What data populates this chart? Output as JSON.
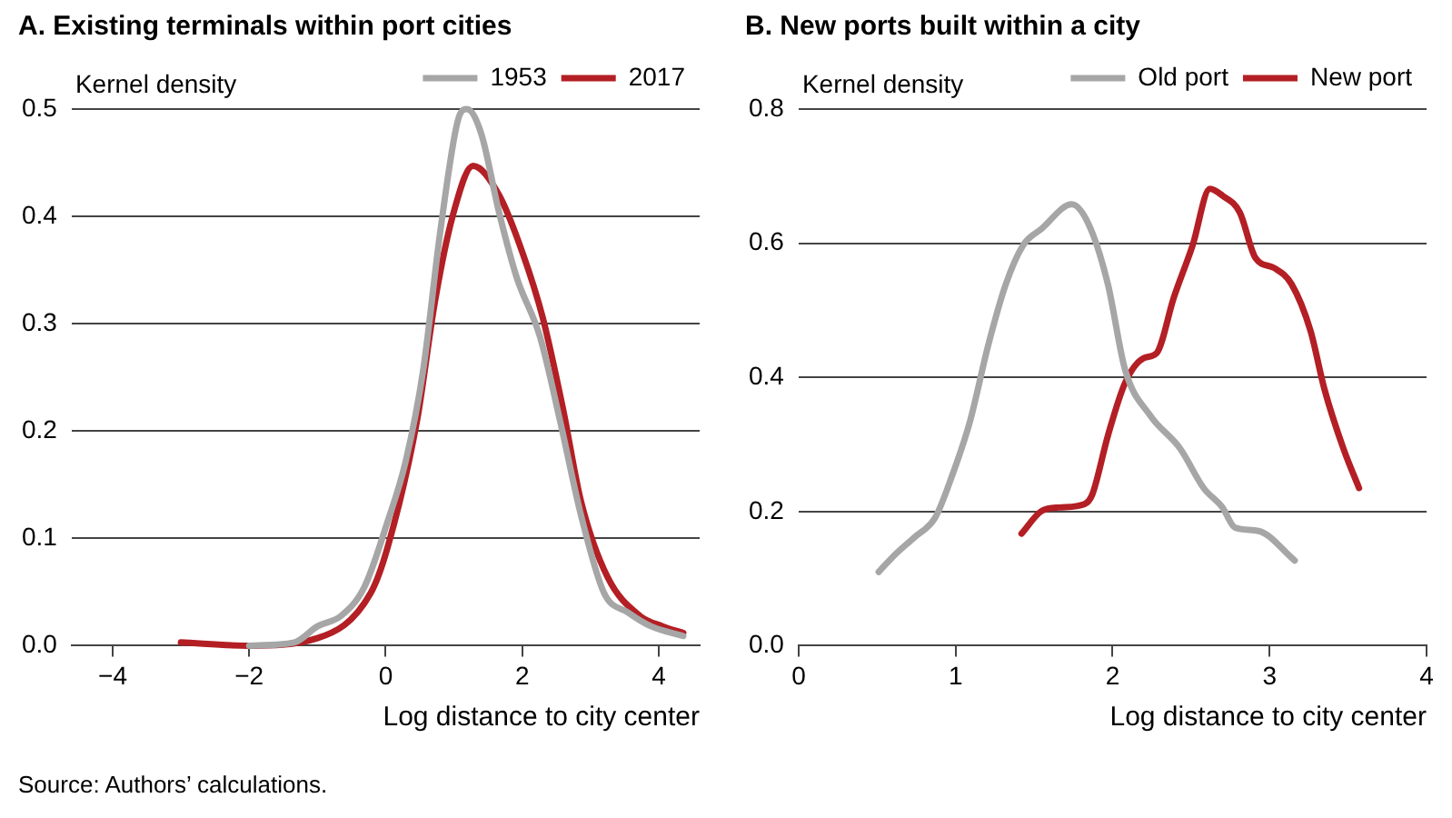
{
  "chart_data": [
    {
      "type": "line",
      "title": "A. Existing terminals within port cities",
      "xlabel": "Log distance to city center",
      "ylabel": "Kernel density",
      "xlim": [
        -4.6,
        4.6
      ],
      "ylim": [
        0,
        0.5
      ],
      "xticks": [
        {
          "value": -4,
          "label": "−4"
        },
        {
          "value": -2,
          "label": "−2"
        },
        0,
        2,
        4
      ],
      "yticks": [
        {
          "value": 0,
          "label": "0.0"
        },
        0.1,
        0.2,
        0.3,
        0.4,
        0.5
      ],
      "grid": "y",
      "legend": "top right",
      "marker": "none",
      "line_style": "solid",
      "annotations": [
        "Source: Authors’ calculations."
      ],
      "series": [
        {
          "name": "1953",
          "color": "#a6a6a6",
          "x": [
            -2.0,
            -1.34,
            -1.0,
            -0.65,
            -0.31,
            0.03,
            0.29,
            0.55,
            0.8,
            1.06,
            1.19,
            1.4,
            1.66,
            1.92,
            2.26,
            2.56,
            2.86,
            3.2,
            3.55,
            3.89,
            4.36
          ],
          "values": [
            0,
            0.003,
            0.018,
            0.028,
            0.055,
            0.116,
            0.171,
            0.257,
            0.386,
            0.49,
            0.5,
            0.477,
            0.404,
            0.343,
            0.288,
            0.208,
            0.122,
            0.049,
            0.031,
            0.018,
            0.009
          ]
        },
        {
          "name": "2017",
          "color": "#b31f24",
          "x": [
            -3.0,
            -2.02,
            -1.0,
            -0.22,
            0.03,
            0.46,
            0.72,
            0.98,
            1.28,
            1.66,
            2.0,
            2.3,
            2.6,
            2.86,
            3.25,
            3.72,
            4.06,
            4.36
          ],
          "values": [
            0.003,
            0,
            0.007,
            0.049,
            0.092,
            0.21,
            0.32,
            0.4,
            0.447,
            0.42,
            0.367,
            0.306,
            0.22,
            0.135,
            0.064,
            0.028,
            0.018,
            0.012
          ]
        }
      ]
    },
    {
      "type": "line",
      "title": "B. New ports built within a city",
      "xlabel": "Log distance to city center",
      "ylabel": "Kernel density",
      "xlim": [
        0,
        4
      ],
      "ylim": [
        0,
        0.8
      ],
      "xticks": [
        0,
        1,
        2,
        3,
        4
      ],
      "yticks": [
        {
          "value": 0,
          "label": "0.0"
        },
        0.2,
        0.4,
        0.6,
        0.8
      ],
      "grid": "y",
      "legend": "top right",
      "marker": "none",
      "line_style": "solid",
      "series": [
        {
          "name": "Old port",
          "color": "#a6a6a6",
          "x": [
            0.51,
            0.62,
            0.74,
            0.87,
            0.98,
            1.09,
            1.21,
            1.32,
            1.43,
            1.55,
            1.74,
            1.85,
            1.97,
            2.08,
            2.24,
            2.43,
            2.58,
            2.7,
            2.78,
            2.93,
            3.16
          ],
          "values": [
            0.11,
            0.137,
            0.162,
            0.191,
            0.255,
            0.333,
            0.45,
            0.539,
            0.597,
            0.622,
            0.658,
            0.627,
            0.539,
            0.411,
            0.343,
            0.294,
            0.235,
            0.206,
            0.176,
            0.171,
            0.127
          ]
        },
        {
          "name": "New port",
          "color": "#b31f24",
          "x": [
            1.42,
            1.55,
            1.66,
            1.82,
            1.87,
            1.97,
            2.08,
            2.2,
            2.28,
            2.39,
            2.51,
            2.62,
            2.7,
            2.81,
            2.91,
            3.03,
            3.14,
            3.26,
            3.35,
            3.47,
            3.57
          ],
          "values": [
            0.167,
            0.201,
            0.206,
            0.211,
            0.225,
            0.313,
            0.392,
            0.429,
            0.436,
            0.519,
            0.597,
            0.681,
            0.671,
            0.646,
            0.578,
            0.563,
            0.539,
            0.47,
            0.382,
            0.294,
            0.235
          ]
        }
      ]
    }
  ]
}
